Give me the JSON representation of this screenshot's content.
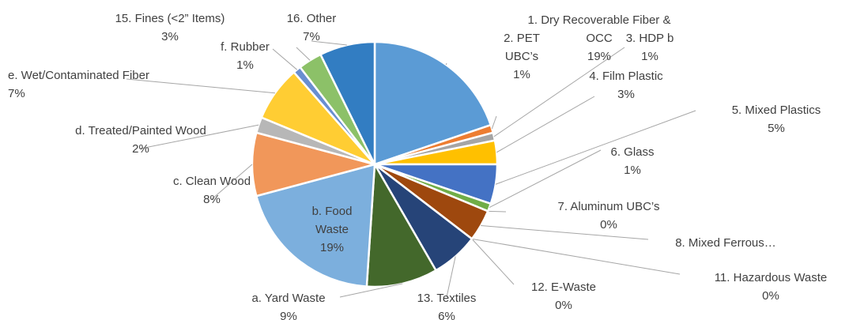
{
  "chart_data": {
    "type": "pie",
    "categories": [
      "1. Dry Recoverable Fiber & OCC",
      "2. PET UBC’s",
      "3. HDP b",
      "4. Film Plastic",
      "5. Mixed Plastics",
      "6. Glass",
      "7. Aluminum UBC’s",
      "8. Mixed Ferrous…",
      "11. Hazardous Waste",
      "12. E-Waste",
      "13. Textiles",
      "a. Yard Waste",
      "b. Food Waste",
      "c. Clean Wood",
      "d. Treated/Painted Wood",
      "e. Wet/Contaminated Fiber",
      "f. Rubber",
      "15. Fines (<2” Items)",
      "16. Other"
    ],
    "values": [
      19,
      1,
      1,
      3,
      5,
      1,
      0,
      4,
      0,
      0,
      6,
      9,
      19,
      8,
      2,
      7,
      1,
      3,
      7
    ],
    "value_labels": [
      "19%",
      "1%",
      "1%",
      "3%",
      "5%",
      "1%",
      "0%",
      null,
      "0%",
      "0%",
      "6%",
      "9%",
      "19%",
      "8%",
      "2%",
      "7%",
      "1%",
      "3%",
      "7%"
    ],
    "colors": [
      "#5b9bd5",
      "#ed7d31",
      "#a5a5a5",
      "#ffc000",
      "#4472c4",
      "#70ad47",
      "#255e91",
      "#9e480e",
      "#636363",
      "#997300",
      "#264478",
      "#43682b",
      "#7cafdd",
      "#f1975a",
      "#b7b7b7",
      "#ffcd33",
      "#698ed0",
      "#8cc168",
      "#327dc2"
    ]
  }
}
